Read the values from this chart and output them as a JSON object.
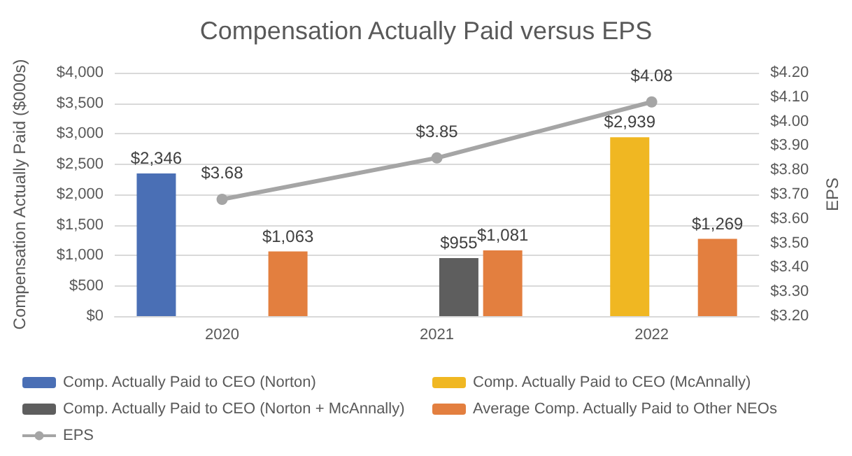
{
  "chart_data": {
    "type": "bar",
    "title": "Compensation Actually Paid versus EPS",
    "ylabel": "Compensation Actually Paid ($000s)",
    "y2label": "EPS",
    "categories": [
      "2020",
      "2021",
      "2022"
    ],
    "series": [
      {
        "name": "Comp. Actually Paid to CEO (Norton)",
        "color": "#4a6fb5",
        "values": [
          2346,
          null,
          null
        ],
        "value_labels": [
          "$2,346",
          null,
          null
        ]
      },
      {
        "name": "Comp. Actually Paid to CEO (McAnnally)",
        "color": "#f0b722",
        "values": [
          null,
          null,
          2939
        ],
        "value_labels": [
          null,
          null,
          "$2,939"
        ]
      },
      {
        "name": "Comp. Actually Paid to CEO (Norton + McAnnally)",
        "color": "#5e5e5e",
        "values": [
          null,
          955,
          null
        ],
        "value_labels": [
          null,
          "$955",
          null
        ]
      },
      {
        "name": "Average Comp. Actually Paid to Other NEOs",
        "color": "#e37f3f",
        "values": [
          1063,
          1081,
          1269
        ],
        "value_labels": [
          "$1,063",
          "$1,081",
          "$1,269"
        ]
      },
      {
        "name": "EPS",
        "type": "line",
        "axis": "y2",
        "color": "#a5a5a5",
        "marker": "circle",
        "values": [
          3.68,
          3.85,
          4.08
        ],
        "value_labels": [
          "$3.68",
          "$3.85",
          "$4.08"
        ]
      }
    ],
    "ylim": [
      0,
      4000
    ],
    "yticks": [
      {
        "value": 0,
        "label": "$0"
      },
      {
        "value": 500,
        "label": "$500"
      },
      {
        "value": 1000,
        "label": "$1,000"
      },
      {
        "value": 1500,
        "label": "$1,500"
      },
      {
        "value": 2000,
        "label": "$2,000"
      },
      {
        "value": 2500,
        "label": "$2,500"
      },
      {
        "value": 3000,
        "label": "$3,000"
      },
      {
        "value": 3500,
        "label": "$3,500"
      },
      {
        "value": 4000,
        "label": "$4,000"
      }
    ],
    "y2lim": [
      3.2,
      4.2
    ],
    "y2ticks": [
      {
        "value": 3.2,
        "label": "$3.20"
      },
      {
        "value": 3.3,
        "label": "$3.30"
      },
      {
        "value": 3.4,
        "label": "$3.40"
      },
      {
        "value": 3.5,
        "label": "$3.50"
      },
      {
        "value": 3.6,
        "label": "$3.60"
      },
      {
        "value": 3.7,
        "label": "$3.70"
      },
      {
        "value": 3.8,
        "label": "$3.80"
      },
      {
        "value": 3.9,
        "label": "$3.90"
      },
      {
        "value": 4.0,
        "label": "$4.00"
      },
      {
        "value": 4.1,
        "label": "$4.10"
      },
      {
        "value": 4.2,
        "label": "$4.20"
      }
    ],
    "grid": "y",
    "legend": "bottom"
  }
}
